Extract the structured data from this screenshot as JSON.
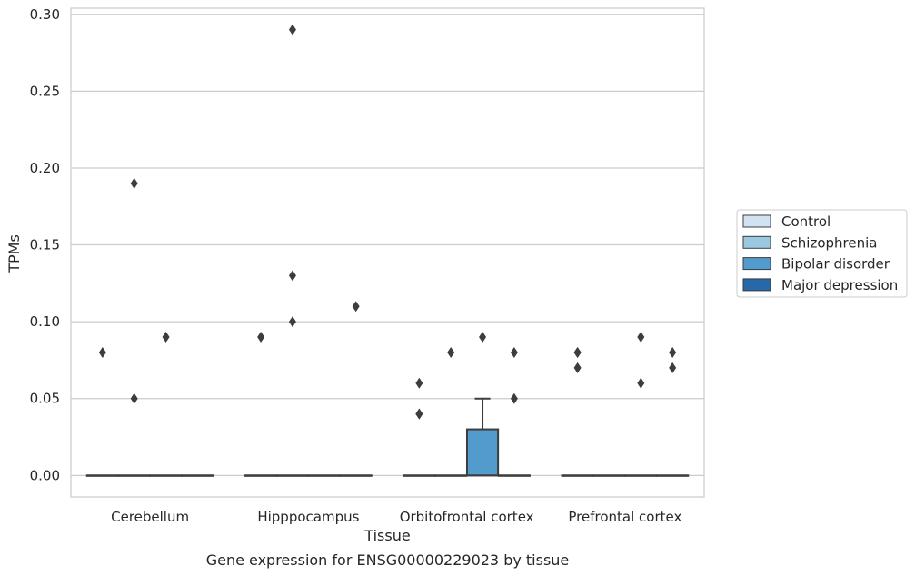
{
  "chart_data": {
    "type": "box",
    "title": "",
    "caption": "Gene expression for ENSG00000229023 by tissue",
    "xlabel": "Tissue",
    "ylabel": "TPMs",
    "ylim": [
      -0.014,
      0.304
    ],
    "yticks": [
      "0.00",
      "0.05",
      "0.10",
      "0.15",
      "0.20",
      "0.25",
      "0.30"
    ],
    "ytick_values": [
      0,
      0.05,
      0.1,
      0.15,
      0.2,
      0.25,
      0.3
    ],
    "grid": true,
    "legend_position": "right",
    "categories": [
      "Cerebellum",
      "Hipppocampus",
      "Orbitofrontal cortex",
      "Prefrontal cortex"
    ],
    "series": [
      {
        "name": "Control",
        "color": "#d1e2f2",
        "boxes": [
          {
            "q1": 0,
            "median": 0,
            "q3": 0,
            "whisker_low": 0,
            "whisker_high": 0,
            "outliers": [
              0.08
            ]
          },
          {
            "q1": 0,
            "median": 0,
            "q3": 0,
            "whisker_low": 0,
            "whisker_high": 0,
            "outliers": [
              0.09
            ]
          },
          {
            "q1": 0,
            "median": 0,
            "q3": 0,
            "whisker_low": 0,
            "whisker_high": 0,
            "outliers": [
              0.04,
              0.04,
              0.06
            ]
          },
          {
            "q1": 0,
            "median": 0,
            "q3": 0,
            "whisker_low": 0,
            "whisker_high": 0,
            "outliers": [
              0.07,
              0.08,
              0.08
            ]
          }
        ]
      },
      {
        "name": "Schizophrenia",
        "color": "#9ac8e0",
        "boxes": [
          {
            "q1": 0,
            "median": 0,
            "q3": 0,
            "whisker_low": 0,
            "whisker_high": 0,
            "outliers": [
              0.05,
              0.19
            ]
          },
          {
            "q1": 0,
            "median": 0,
            "q3": 0,
            "whisker_low": 0,
            "whisker_high": 0,
            "outliers": [
              0.1,
              0.13,
              0.29
            ]
          },
          {
            "q1": 0,
            "median": 0,
            "q3": 0,
            "whisker_low": 0,
            "whisker_high": 0,
            "outliers": [
              0.08
            ]
          },
          {
            "q1": 0,
            "median": 0,
            "q3": 0,
            "whisker_low": 0,
            "whisker_high": 0,
            "outliers": []
          }
        ]
      },
      {
        "name": "Bipolar disorder",
        "color": "#519ccc",
        "boxes": [
          {
            "q1": 0,
            "median": 0,
            "q3": 0,
            "whisker_low": 0,
            "whisker_high": 0,
            "outliers": [
              0.09
            ]
          },
          {
            "q1": 0,
            "median": 0,
            "q3": 0,
            "whisker_low": 0,
            "whisker_high": 0,
            "outliers": []
          },
          {
            "q1": 0,
            "median": 0,
            "q3": 0.03,
            "whisker_low": 0,
            "whisker_high": 0.05,
            "outliers": [
              0.09
            ]
          },
          {
            "q1": 0,
            "median": 0,
            "q3": 0,
            "whisker_low": 0,
            "whisker_high": 0,
            "outliers": [
              0.06,
              0.09
            ]
          }
        ]
      },
      {
        "name": "Major depression",
        "color": "#2668aa",
        "boxes": [
          {
            "q1": 0,
            "median": 0,
            "q3": 0,
            "whisker_low": 0,
            "whisker_high": 0,
            "outliers": []
          },
          {
            "q1": 0,
            "median": 0,
            "q3": 0,
            "whisker_low": 0,
            "whisker_high": 0,
            "outliers": [
              0.11
            ]
          },
          {
            "q1": 0,
            "median": 0,
            "q3": 0,
            "whisker_low": 0,
            "whisker_high": 0,
            "outliers": [
              0.05,
              0.08
            ]
          },
          {
            "q1": 0,
            "median": 0,
            "q3": 0,
            "whisker_low": 0,
            "whisker_high": 0,
            "outliers": [
              0.07,
              0.08
            ]
          }
        ]
      }
    ]
  }
}
